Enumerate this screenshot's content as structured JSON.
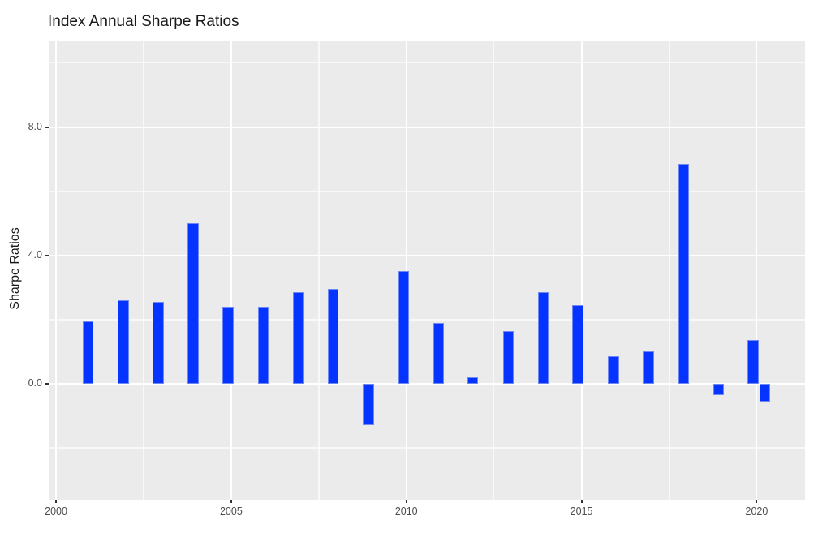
{
  "chart_data": {
    "type": "bar",
    "title": "Index Annual Sharpe Ratios",
    "xlabel": "",
    "ylabel": "Sharpe Ratios",
    "legend_position": "none",
    "grid": "major and minor white gridlines on gray panel",
    "years": [
      2000,
      2001,
      2002,
      2003,
      2004,
      2005,
      2006,
      2007,
      2008,
      2009,
      2010,
      2011,
      2012,
      2013,
      2014,
      2015,
      2016,
      2017,
      2018,
      2019,
      2020
    ],
    "x_positions": [
      2000.91,
      2001.92,
      2002.92,
      2003.91,
      2004.91,
      2005.92,
      2006.92,
      2007.91,
      2008.92,
      2009.92,
      2010.92,
      2011.9,
      2012.91,
      2013.91,
      2014.89,
      2015.91,
      2016.91,
      2017.92,
      2018.92,
      2019.9,
      2020.24
    ],
    "values": [
      1.95,
      2.6,
      2.55,
      5.0,
      2.4,
      2.4,
      2.85,
      2.95,
      -1.3,
      3.5,
      1.9,
      0.2,
      1.65,
      2.85,
      2.45,
      0.85,
      1.0,
      6.85,
      -0.35,
      1.35,
      -0.55
    ],
    "bar_width_x": 0.31,
    "x_major_ticks": [
      2000,
      2005,
      2010,
      2015,
      2020
    ],
    "x_major_labels": [
      "2000",
      "2005",
      "2010",
      "2015",
      "2020"
    ],
    "x_minor_ticks": [
      2002.5,
      2007.5,
      2012.5,
      2017.5
    ],
    "y_major_ticks": [
      0,
      4,
      8
    ],
    "y_major_labels": [
      "0.0",
      "4.0",
      "8.0"
    ],
    "y_minor_ticks": [
      -2,
      2,
      6,
      10
    ],
    "xlim": [
      1999.79,
      2021.38
    ],
    "ylim": [
      -3.62,
      10.67
    ]
  },
  "style": {
    "page_bg": "#ffffff",
    "panel_bg": "#ebebeb",
    "bar_fill": "#0533ff",
    "bar_edge": "#8298f2",
    "gridline_color": "#ffffff",
    "tick_mark_color": "#333333",
    "tick_label_color": "#4d4d4d",
    "title_color": "#1a1a1a"
  }
}
